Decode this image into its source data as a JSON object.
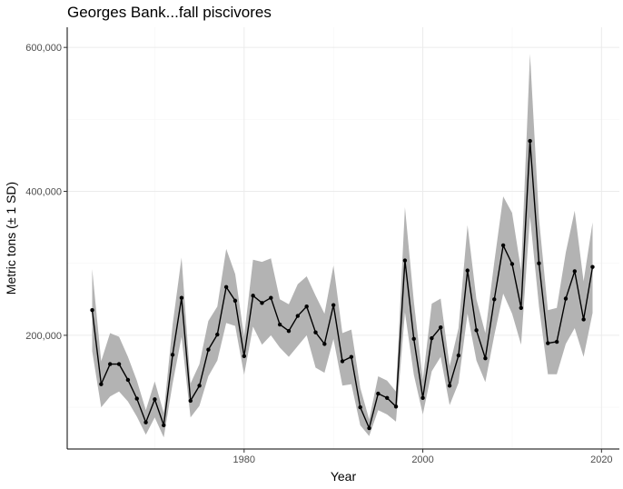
{
  "chart_data": {
    "type": "line",
    "title": "Georges Bank...fall piscivores",
    "xlabel": "Year",
    "ylabel": "Metric tons (± 1 SD)",
    "xlim": [
      1960.2,
      2022
    ],
    "ylim": [
      42000,
      628000
    ],
    "x_ticks": [
      1980,
      2000,
      2020
    ],
    "x_tick_labels": [
      "1980",
      "2000",
      "2020"
    ],
    "y_ticks": [
      200000,
      400000,
      600000
    ],
    "y_tick_labels": [
      "200,000",
      "400,000",
      "600,000"
    ],
    "grid": true,
    "legend": "none",
    "colors": {
      "line": "#000000",
      "ribbon": "#b3b3b3",
      "grid": "#ebebeb"
    },
    "series": [
      {
        "x": [
          1963,
          1964,
          1965,
          1966,
          1967,
          1968,
          1969,
          1970,
          1971,
          1972,
          1973,
          1974,
          1975,
          1976,
          1977,
          1978,
          1979,
          1980,
          1981,
          1982,
          1983,
          1984,
          1985,
          1986,
          1987,
          1988,
          1989,
          1990,
          1991,
          1992,
          1993,
          1994,
          1995,
          1996,
          1997,
          1998,
          1999,
          2000,
          2001,
          2002,
          2003,
          2004,
          2005,
          2006,
          2007,
          2008,
          2009,
          2010,
          2011,
          2012,
          2013,
          2014,
          2015,
          2016,
          2017,
          2018,
          2019
        ],
        "y": [
          235000,
          132000,
          160000,
          160000,
          138000,
          112000,
          79000,
          111000,
          75000,
          173000,
          252000,
          109000,
          130000,
          180000,
          201000,
          267000,
          248000,
          171000,
          255000,
          245000,
          252000,
          215000,
          206000,
          227000,
          240000,
          204000,
          188000,
          242000,
          164000,
          170000,
          100000,
          71000,
          119000,
          113000,
          101000,
          304000,
          195000,
          113000,
          196000,
          211000,
          130000,
          172000,
          290000,
          207000,
          168000,
          250000,
          325000,
          299000,
          238000,
          470000,
          300000,
          189000,
          191000,
          251000,
          289000,
          222000,
          295000
        ],
        "lower": [
          178000,
          100000,
          115000,
          122000,
          108000,
          87000,
          62000,
          86000,
          58000,
          133000,
          198000,
          86000,
          102000,
          143000,
          165000,
          217000,
          213000,
          145000,
          212000,
          187000,
          200000,
          183000,
          170000,
          185000,
          200000,
          155000,
          148000,
          195000,
          130000,
          132000,
          75000,
          60000,
          96000,
          90000,
          80000,
          232000,
          145000,
          90000,
          150000,
          170000,
          103000,
          134000,
          230000,
          165000,
          135000,
          200000,
          258000,
          230000,
          187000,
          365000,
          240000,
          146000,
          146000,
          188000,
          210000,
          170000,
          231000
        ],
        "upper": [
          292000,
          164000,
          203000,
          198000,
          170000,
          137000,
          96000,
          136000,
          92000,
          215000,
          308000,
          133000,
          160000,
          220000,
          240000,
          320000,
          285000,
          198000,
          305000,
          302000,
          307000,
          250000,
          243000,
          271000,
          282000,
          255000,
          230000,
          297000,
          203000,
          208000,
          127000,
          83000,
          143000,
          137000,
          122000,
          378000,
          247000,
          138000,
          244000,
          251000,
          157000,
          210000,
          353000,
          250000,
          203000,
          302000,
          393000,
          370000,
          290000,
          591000,
          362000,
          235000,
          238000,
          315000,
          373000,
          275000,
          357000
        ]
      }
    ]
  }
}
